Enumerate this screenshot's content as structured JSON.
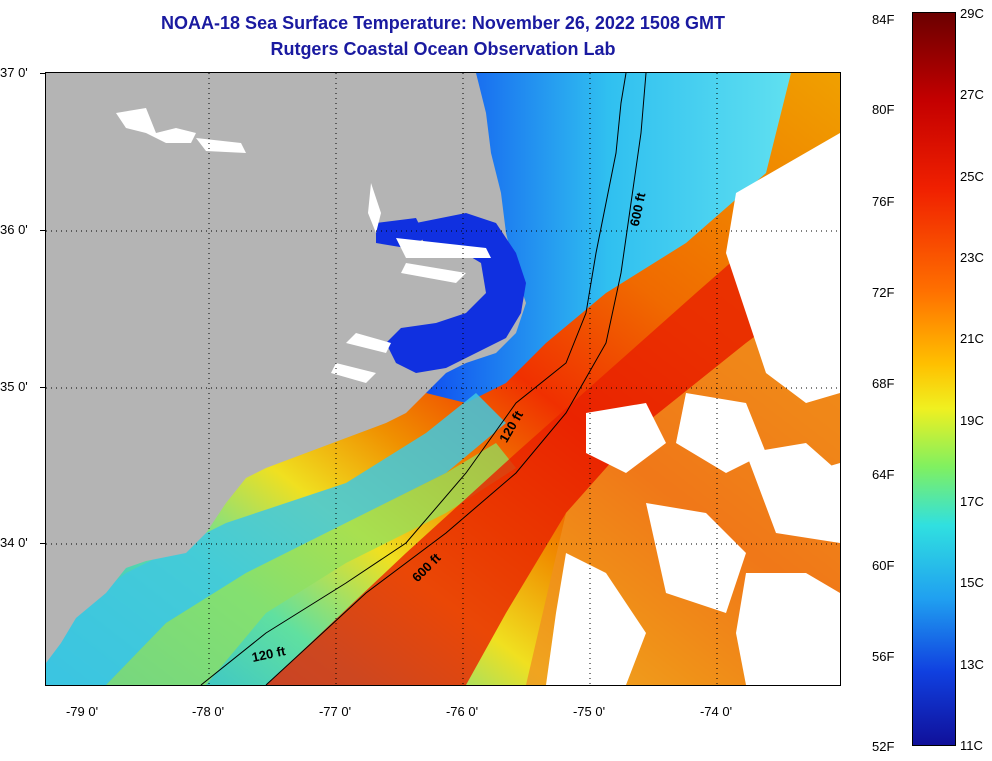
{
  "header": {
    "title": "NOAA-18 Sea Surface Temperature:  November 26, 2022 1508 GMT",
    "subtitle": "Rutgers Coastal Ocean Observation Lab"
  },
  "map": {
    "lat_labels": [
      "37 0'",
      "36 0'",
      "35 0'",
      "34 0'"
    ],
    "lon_labels": [
      "-79 0'",
      "-78 0'",
      "-77 0'",
      "-76 0'",
      "-75 0'",
      "-74 0'"
    ],
    "contour_labels": [
      "600 ft",
      "120 ft",
      "600 ft",
      "120 ft"
    ]
  },
  "colorbar": {
    "fahrenheit_labels": [
      "84F",
      "80F",
      "76F",
      "72F",
      "68F",
      "64F",
      "60F",
      "56F",
      "52F"
    ],
    "celsius_labels": [
      "29C",
      "27C",
      "25C",
      "23C",
      "21C",
      "19C",
      "17C",
      "15C",
      "13C",
      "11C"
    ]
  },
  "colors": {
    "land": "#b4b4b4",
    "title_text": "#1a1aa0",
    "cold": "#1040e0",
    "warm": "#f02000"
  }
}
